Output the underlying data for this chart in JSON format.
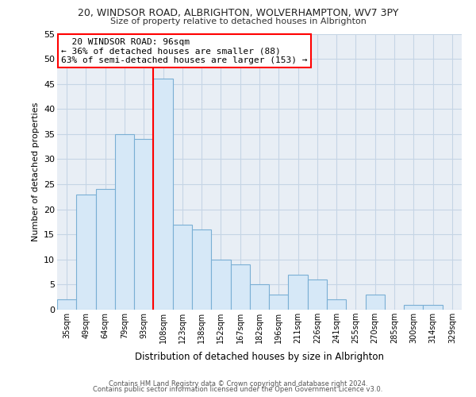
{
  "title": "20, WINDSOR ROAD, ALBRIGHTON, WOLVERHAMPTON, WV7 3PY",
  "subtitle": "Size of property relative to detached houses in Albrighton",
  "xlabel": "Distribution of detached houses by size in Albrighton",
  "ylabel": "Number of detached properties",
  "bar_color": "#d6e8f7",
  "bar_edge_color": "#7aafd4",
  "highlight_line_color": "red",
  "categories": [
    "35sqm",
    "49sqm",
    "64sqm",
    "79sqm",
    "93sqm",
    "108sqm",
    "123sqm",
    "138sqm",
    "152sqm",
    "167sqm",
    "182sqm",
    "196sqm",
    "211sqm",
    "226sqm",
    "241sqm",
    "255sqm",
    "270sqm",
    "285sqm",
    "300sqm",
    "314sqm",
    "329sqm"
  ],
  "values": [
    2,
    23,
    24,
    35,
    34,
    46,
    17,
    16,
    10,
    9,
    5,
    3,
    7,
    6,
    2,
    0,
    3,
    0,
    1,
    1,
    0
  ],
  "highlight_index": 4,
  "annotation_title": "20 WINDSOR ROAD: 96sqm",
  "annotation_line1": "← 36% of detached houses are smaller (88)",
  "annotation_line2": "63% of semi-detached houses are larger (153) →",
  "ylim": [
    0,
    55
  ],
  "yticks": [
    0,
    5,
    10,
    15,
    20,
    25,
    30,
    35,
    40,
    45,
    50,
    55
  ],
  "footer1": "Contains HM Land Registry data © Crown copyright and database right 2024.",
  "footer2": "Contains public sector information licensed under the Open Government Licence v3.0.",
  "bg_color": "#ffffff",
  "plot_bg_color": "#e8eef5",
  "grid_color": "#c5d5e5",
  "annotation_box_edge_color": "red"
}
